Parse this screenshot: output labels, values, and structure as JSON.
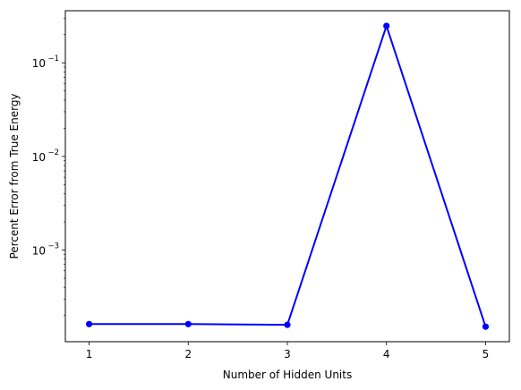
{
  "chart_data": {
    "type": "line",
    "title": "",
    "xlabel": "Number of Hidden Units",
    "ylabel": "Percent Error from True Energy",
    "x": [
      1,
      2,
      3,
      4,
      5
    ],
    "xticks": [
      "1",
      "2",
      "3",
      "4",
      "5"
    ],
    "xlim": [
      0.76,
      5.24
    ],
    "yscale": "log",
    "ylim": [
      0.000105,
      0.36
    ],
    "yticks": [
      {
        "value": 0.001,
        "base": "10",
        "exp": "−3"
      },
      {
        "value": 0.01,
        "base": "10",
        "exp": "−2"
      },
      {
        "value": 0.1,
        "base": "10",
        "exp": "−1"
      }
    ],
    "series": [
      {
        "values": [
          0.000162,
          0.000162,
          0.000159,
          0.248,
          0.000152
        ],
        "color": "#0000ff",
        "marker": "circle"
      }
    ],
    "grid": false,
    "legend": "none"
  }
}
